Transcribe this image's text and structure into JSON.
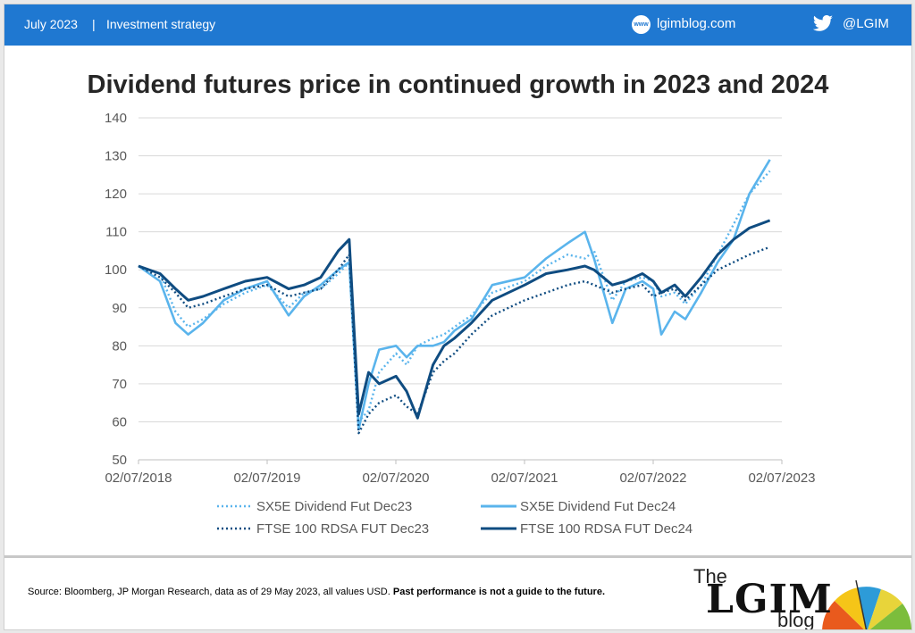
{
  "header": {
    "date": "July 2023",
    "separator": "|",
    "topic": "Investment strategy",
    "site_icon": "www",
    "site": "lgimblog.com",
    "twitter_icon": "twitter-bird-icon",
    "handle": "@LGIM"
  },
  "footer": {
    "source": "Source: Bloomberg, JP Morgan Research, data as of 29 May  2023, all values USD.",
    "disclaimer": "Past performance is not a guide to the future.",
    "logo": {
      "the": "The",
      "main": "LGIM",
      "blog": "blog"
    }
  },
  "colors": {
    "brand_blue": "#1f78d1",
    "light_series": "#5ab4ec",
    "dark_series": "#0f4c81"
  },
  "chart_data": {
    "type": "line",
    "title": "Dividend futures price in continued growth in 2023 and 2024",
    "xlabel": "",
    "ylabel": "",
    "ylim": [
      50,
      140
    ],
    "yticks": [
      "50",
      "60",
      "70",
      "80",
      "90",
      "100",
      "110",
      "120",
      "130",
      "140"
    ],
    "xlim": [
      "2018-07-02",
      "2023-07-02"
    ],
    "xticks": [
      "02/07/2018",
      "02/07/2019",
      "02/07/2020",
      "02/07/2021",
      "02/07/2022",
      "02/07/2023"
    ],
    "grid": "horizontal",
    "legend": "bottom",
    "x": [
      "2018-07-02",
      "2018-09-01",
      "2018-10-15",
      "2018-11-20",
      "2019-01-01",
      "2019-03-01",
      "2019-05-01",
      "2019-07-02",
      "2019-09-01",
      "2019-10-15",
      "2019-12-01",
      "2020-01-20",
      "2020-02-20",
      "2020-03-18",
      "2020-04-15",
      "2020-05-15",
      "2020-07-02",
      "2020-08-01",
      "2020-09-01",
      "2020-10-15",
      "2020-11-15",
      "2020-12-15",
      "2021-02-01",
      "2021-04-01",
      "2021-07-02",
      "2021-09-01",
      "2021-11-01",
      "2021-12-20",
      "2022-01-15",
      "2022-03-08",
      "2022-04-15",
      "2022-06-01",
      "2022-07-02",
      "2022-07-25",
      "2022-09-01",
      "2022-10-01",
      "2022-11-15",
      "2023-01-01",
      "2023-02-15",
      "2023-04-01",
      "2023-05-29"
    ],
    "series": [
      {
        "name": "SX5E Dividend Fut Dec23",
        "style": "dotted",
        "color": "#5ab4ec",
        "values": [
          101,
          99,
          89,
          85,
          87,
          91,
          94,
          96,
          90,
          94,
          95,
          99,
          102,
          60,
          63,
          73,
          78,
          75,
          80,
          82,
          83,
          85,
          88,
          94,
          97,
          101,
          104,
          103,
          105,
          92,
          97,
          98,
          97,
          93,
          94,
          91,
          96,
          104,
          112,
          120,
          126
        ]
      },
      {
        "name": "SX5E Dividend Fut Dec24",
        "style": "solid",
        "color": "#5ab4ec",
        "values": [
          101,
          97,
          86,
          83,
          86,
          92,
          95,
          97,
          88,
          93,
          96,
          100,
          102,
          58,
          70,
          79,
          80,
          77,
          80,
          80,
          81,
          84,
          87,
          96,
          98,
          103,
          107,
          110,
          103,
          86,
          95,
          97,
          95,
          83,
          89,
          87,
          94,
          102,
          108,
          120,
          129
        ]
      },
      {
        "name": "FTSE 100 RDSA FUT Dec23",
        "style": "dotted",
        "color": "#0f4c81",
        "values": [
          101,
          98,
          94,
          90,
          91,
          93,
          95,
          96,
          93,
          94,
          95,
          100,
          104,
          57,
          62,
          65,
          67,
          64,
          62,
          73,
          76,
          78,
          83,
          88,
          92,
          94,
          96,
          97,
          96,
          94,
          95,
          96,
          93,
          94,
          95,
          92,
          96,
          100,
          102,
          104,
          106
        ]
      },
      {
        "name": "FTSE 100 RDSA FUT Dec24",
        "style": "solid",
        "color": "#0f4c81",
        "values": [
          101,
          99,
          95,
          92,
          93,
          95,
          97,
          98,
          95,
          96,
          98,
          105,
          108,
          62,
          73,
          70,
          72,
          68,
          61,
          75,
          80,
          82,
          86,
          92,
          96,
          99,
          100,
          101,
          100,
          96,
          97,
          99,
          97,
          94,
          96,
          93,
          98,
          104,
          108,
          111,
          113
        ]
      }
    ]
  }
}
